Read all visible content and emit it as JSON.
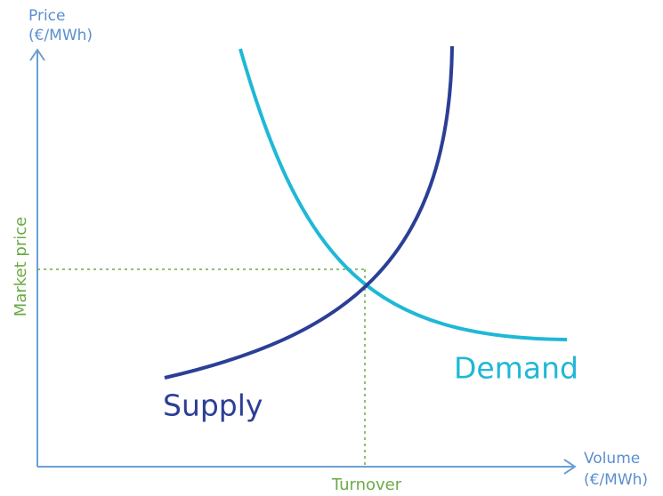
{
  "y_axis": {
    "label": "Price",
    "unit": "(€/MWh)"
  },
  "x_axis": {
    "label": "Volume",
    "unit": "(€/MWh)"
  },
  "market_price": "Market price",
  "turnover": "Turnover",
  "curves": {
    "supply": "Supply",
    "demand": "Demand"
  }
}
